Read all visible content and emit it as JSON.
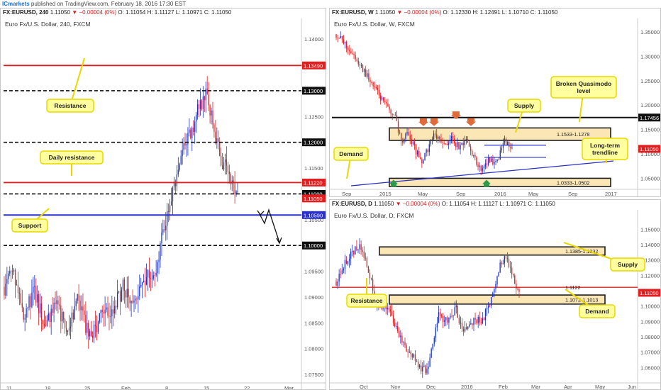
{
  "header": {
    "brand": "ICmarkets",
    "published": "published on TradingView.com, February 18, 2016 17:30 EST"
  },
  "panels": {
    "h4": {
      "symbol": "FX:EURUSD, 240",
      "ohlc": {
        "last": "1.11050",
        "chg": "▼ −0.00004 (0%)",
        "o": "O: 1.11054",
        "h": "H: 1.11127",
        "l": "L: 1.10971",
        "c": "C: 1.11050"
      },
      "subtitle": "Euro Fx/U.S. Dollar, 240, FXCM"
    },
    "weekly": {
      "symbol": "FX:EURUSD, W",
      "ohlc": {
        "last": "1.11050",
        "chg": "▼ −0.00004 (0%)",
        "o": "O: 1.12330",
        "h": "H: 1.12491",
        "l": "L: 1.10710",
        "c": "C: 1.11050"
      },
      "subtitle": "Euro Fx/U.S. Dollar, W, FXCM"
    },
    "daily": {
      "symbol": "FX:EURUSD, D",
      "ohlc": {
        "last": "1.11050",
        "chg": "▼ −0.00004 (0%)",
        "o": "O: 1.11054",
        "h": "H: 1.11127",
        "l": "L: 1.10971",
        "c": "C: 1.11050"
      },
      "subtitle": "Euro Fx/U.S. Dollar, D, FXCM"
    }
  },
  "colors": {
    "up": "#1a34c8",
    "down": "#e01e1e",
    "wick": "#9a9a9a",
    "resist": "#e02020",
    "support": "#2a30c8",
    "zone_fill": "#fbe6b6",
    "zone_border": "#1e1e1e",
    "callout_fill": "#ffffa0",
    "callout_border": "#e8d800",
    "green": "#2e9a4a",
    "orange": "#e06a3a"
  },
  "chart_data": [
    {
      "type": "candlestick",
      "name": "h4",
      "ylim": [
        1.0735,
        1.1425
      ],
      "x_ticks": [
        "11",
        "18",
        "25",
        "Feb",
        "8",
        "15",
        "22",
        "Mar"
      ],
      "y_ticks": [
        "1.14000",
        "1.13500",
        "1.12500",
        "1.12000",
        "1.11500",
        "1.10500",
        "1.10000",
        "1.09500",
        "1.09000",
        "1.08500",
        "1.08000",
        "1.07500"
      ],
      "levels": [
        {
          "value": 1.1349,
          "label": "1.13490",
          "kind": "resist"
        },
        {
          "value": 1.13,
          "label": "1.13000",
          "kind": "dash"
        },
        {
          "value": 1.12,
          "label": "1.12000",
          "kind": "dash"
        },
        {
          "value": 1.1122,
          "label": "1.11220",
          "kind": "resist"
        },
        {
          "value": 1.11,
          "label": "1.11000",
          "kind": "dash"
        },
        {
          "value": 1.1059,
          "label": "1.10590",
          "kind": "support"
        },
        {
          "value": 1.1,
          "label": "1.10000",
          "kind": "dash"
        }
      ],
      "last": {
        "value": 1.1105,
        "label": "1.11050"
      },
      "annotations": [
        "Resistance",
        "Daily resistance",
        "Support"
      ]
    },
    {
      "type": "candlestick",
      "name": "weekly",
      "ylim": [
        1.0305,
        1.3615
      ],
      "x_ticks": [
        "Sep",
        "2015",
        "May",
        "Sep",
        "2016",
        "May",
        "Sep",
        "2017"
      ],
      "y_ticks": [
        "1.35000",
        "1.30000",
        "1.25000",
        "1.20000",
        "1.15000",
        "1.10000",
        "1.05000"
      ],
      "levels": [
        {
          "value": 1.17456,
          "label": "1.17456",
          "kind": "black"
        }
      ],
      "zones": [
        {
          "from": 1.1278,
          "to": 1.1533,
          "label": "1.1533-1.1278"
        },
        {
          "from": 1.0333,
          "to": 1.0502,
          "label": "1.0333-1.0502"
        }
      ],
      "last": {
        "value": 1.1105,
        "label": "1.11050"
      },
      "annotations": [
        "Supply",
        "Broken Quasimodo level",
        "Demand",
        "Long-term trendline"
      ]
    },
    {
      "type": "candlestick",
      "name": "daily",
      "ylim": [
        1.0505,
        1.1575
      ],
      "x_ticks": [
        "Oct",
        "Nov",
        "Dec",
        "2016",
        "Feb",
        "Mar",
        "Apr",
        "May",
        "Jun"
      ],
      "y_ticks": [
        "1.15000",
        "1.14000",
        "1.13000",
        "1.12000",
        "1.10000",
        "1.09000",
        "1.08000",
        "1.07000",
        "1.06000"
      ],
      "levels": [
        {
          "value": 1.1122,
          "label": "1.1122",
          "kind": "resist"
        }
      ],
      "zones": [
        {
          "from": 1.1332,
          "to": 1.1385,
          "label": "1.1385-1.1332"
        },
        {
          "from": 1.1013,
          "to": 1.1072,
          "label": "1.1072-1.1013"
        }
      ],
      "last": {
        "value": 1.1105,
        "label": "1.11050"
      },
      "annotations": [
        "Supply",
        "Resistance",
        "Demand"
      ]
    }
  ]
}
